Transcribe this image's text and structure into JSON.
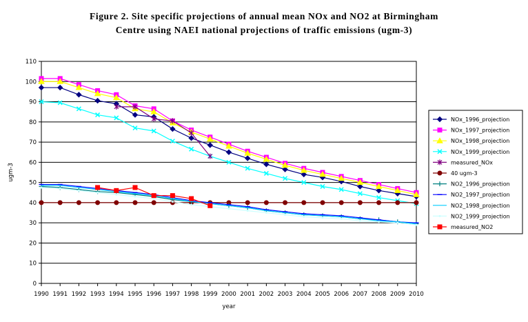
{
  "title": {
    "line1": "Figure 2. Site specific projections of annual mean NOx and NO2 at Birmingham",
    "line2": "Centre using NAEI national projections of traffic emissions (ugm-3)"
  },
  "chart_data": {
    "type": "line",
    "xlabel": "year",
    "ylabel": "ugm-3",
    "ylim": [
      0,
      110
    ],
    "yticks": [
      0,
      10,
      20,
      30,
      40,
      50,
      60,
      70,
      80,
      90,
      100,
      110
    ],
    "grid": true,
    "legend": "right",
    "categories": [
      "1990",
      "1991",
      "1992",
      "1993",
      "1994",
      "1995",
      "1996",
      "1997",
      "1998",
      "1999",
      "2000",
      "2001",
      "2002",
      "2003",
      "2004",
      "2005",
      "2006",
      "2007",
      "2008",
      "2009",
      "2010"
    ],
    "series": [
      {
        "name": "NOx_1996_projection",
        "color": "#000080",
        "marker": "diamond",
        "values": [
          97,
          97,
          93.5,
          90.5,
          89,
          83.5,
          82.5,
          76.5,
          72,
          68.5,
          65,
          62,
          59,
          56.5,
          54,
          52.5,
          50.5,
          48,
          46,
          44.5,
          43
        ]
      },
      {
        "name": "NOx_1997_projection",
        "color": "#ff00ff",
        "marker": "square",
        "values": [
          101.5,
          101.5,
          98.5,
          95.5,
          93.5,
          88,
          86.5,
          80.5,
          76,
          72.5,
          69,
          65.5,
          62.5,
          59.5,
          57,
          55,
          53,
          51,
          49,
          47,
          45
        ]
      },
      {
        "name": "NOx_1998_projection",
        "color": "#ffff00",
        "marker": "triangle",
        "values": [
          100,
          100,
          97,
          94,
          92,
          86.5,
          85,
          79.5,
          75,
          71.5,
          68,
          64.5,
          61.5,
          58.5,
          56,
          54,
          52,
          50,
          48,
          46,
          44
        ]
      },
      {
        "name": "NOx_1999_projection",
        "color": "#00ffff",
        "marker": "x",
        "values": [
          90,
          89.5,
          86.5,
          83.5,
          82,
          77,
          75.5,
          70.5,
          66.5,
          63,
          60,
          57,
          54.5,
          52,
          50,
          48,
          46.5,
          44.5,
          42.5,
          41,
          39.5
        ]
      },
      {
        "name": "measured_NOx",
        "color": "#800080",
        "marker": "star",
        "values": [
          null,
          null,
          null,
          null,
          87.5,
          87.5,
          81.5,
          80.5,
          74.5,
          63,
          null,
          null,
          null,
          null,
          null,
          null,
          null,
          null,
          null,
          null,
          null
        ]
      },
      {
        "name": "40 ugm-3",
        "color": "#800000",
        "marker": "circle",
        "values": [
          40,
          40,
          40,
          40,
          40,
          40,
          40,
          40,
          40,
          40,
          40,
          40,
          40,
          40,
          40,
          40,
          40,
          40,
          40,
          40,
          40
        ]
      },
      {
        "name": "NO2_1996_projection",
        "color": "#008080",
        "marker": "plus",
        "values": [
          48,
          47.5,
          46.5,
          45.5,
          45,
          44,
          43,
          41.5,
          40.5,
          39.5,
          38.5,
          37.5,
          36,
          35,
          34,
          33.5,
          33,
          32,
          31.5,
          30.5,
          29.5
        ]
      },
      {
        "name": "NO2_1997_projection",
        "color": "#0000ff",
        "marker": "dash",
        "values": [
          49,
          49,
          48,
          47,
          46,
          45,
          44,
          42.5,
          41,
          40,
          39,
          38,
          36.5,
          35.5,
          34.5,
          34,
          33.5,
          32.5,
          31.5,
          30.5,
          30
        ]
      },
      {
        "name": "NO2_1998_projection",
        "color": "#00ccff",
        "marker": "none",
        "values": [
          48.5,
          48.5,
          47.5,
          46.5,
          45.5,
          44.5,
          43.5,
          42,
          40.5,
          39.5,
          38.5,
          37.5,
          36,
          35,
          34,
          33.5,
          33,
          32,
          31,
          30.5,
          29.5
        ]
      },
      {
        "name": "NO2_1999_projection",
        "color": "#ccffff",
        "marker": "dot",
        "values": [
          47.5,
          47,
          46,
          45,
          44,
          43,
          42,
          40.5,
          39,
          38,
          37,
          36,
          35,
          34,
          33,
          32.5,
          32,
          31,
          30.5,
          30,
          29
        ]
      },
      {
        "name": "measured_NO2",
        "color": "#ff0000",
        "marker": "square",
        "values": [
          null,
          null,
          null,
          47.5,
          46,
          47.5,
          43.5,
          43.5,
          42,
          38.5,
          null,
          null,
          null,
          null,
          null,
          null,
          null,
          null,
          null,
          null,
          null
        ]
      }
    ]
  }
}
